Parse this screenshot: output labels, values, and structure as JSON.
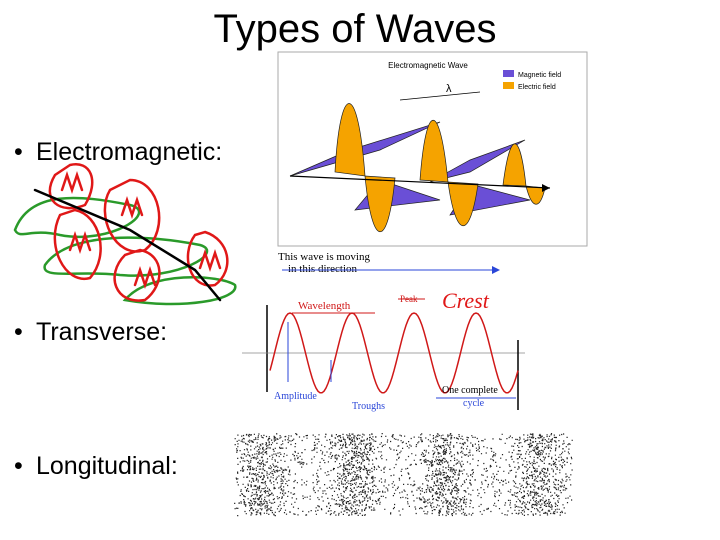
{
  "title": "Types of Waves",
  "bullets": [
    "Electromagnetic:",
    "Transverse:",
    "Longitudinal:"
  ],
  "em_diagram": {
    "title": "Electromagnetic Wave",
    "legend": [
      "Magnetic field",
      "Electric field"
    ],
    "wavelength_symbol": "λ",
    "caption": [
      "This wave is moving",
      "in this direction"
    ]
  },
  "transverse_diagram": {
    "wavelength": "Wavelength",
    "peak": "Peak",
    "crest": "Crest",
    "amplitude": "Amplitude",
    "troughs": "Troughs",
    "cycle": [
      "One complete",
      "cycle"
    ]
  }
}
